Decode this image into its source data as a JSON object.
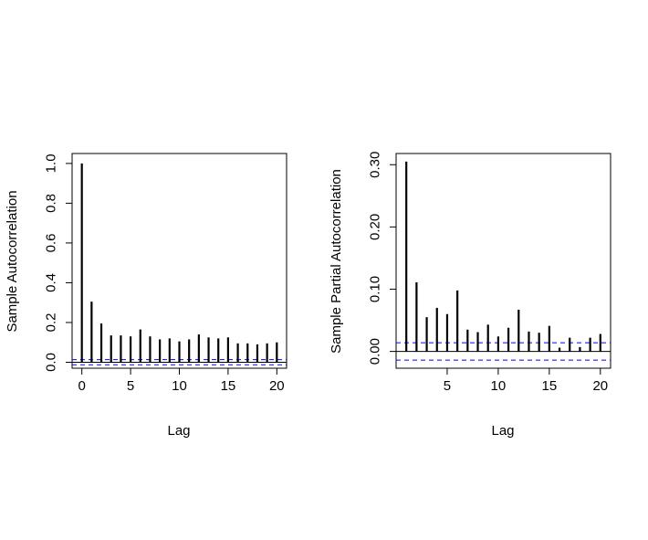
{
  "chart_data": [
    {
      "type": "bar",
      "subtype": "acf-stem",
      "xlabel": "Lag",
      "ylabel": "Sample Autocorrelation",
      "xlim": [
        -1,
        21
      ],
      "ylim": [
        -0.03,
        1.05
      ],
      "x_ticks": [
        0,
        5,
        10,
        15,
        20
      ],
      "y_ticks": [
        0.0,
        0.2,
        0.4,
        0.6,
        0.8,
        1.0
      ],
      "y_tick_labels": [
        "0.0",
        "0.2",
        "0.4",
        "0.6",
        "0.8",
        "1.0"
      ],
      "x": [
        0,
        1,
        2,
        3,
        4,
        5,
        6,
        7,
        8,
        9,
        10,
        11,
        12,
        13,
        14,
        15,
        16,
        17,
        18,
        19,
        20
      ],
      "values": [
        1.0,
        0.305,
        0.195,
        0.135,
        0.135,
        0.13,
        0.165,
        0.13,
        0.115,
        0.12,
        0.105,
        0.115,
        0.14,
        0.125,
        0.12,
        0.125,
        0.095,
        0.095,
        0.09,
        0.095,
        0.1
      ],
      "confidence_bound": 0.013,
      "bound_color": "#0000ff"
    },
    {
      "type": "bar",
      "subtype": "pacf-stem",
      "xlabel": "Lag",
      "ylabel": "Sample Partial Autocorrelation",
      "xlim": [
        0,
        21
      ],
      "ylim": [
        -0.027,
        0.318
      ],
      "x_ticks": [
        5,
        10,
        15,
        20
      ],
      "y_ticks": [
        0.0,
        0.1,
        0.2,
        0.3
      ],
      "y_tick_labels": [
        "0.00",
        "0.10",
        "0.20",
        "0.30"
      ],
      "x": [
        1,
        2,
        3,
        4,
        5,
        6,
        7,
        8,
        9,
        10,
        11,
        12,
        13,
        14,
        15,
        16,
        17,
        18,
        19,
        20
      ],
      "values": [
        0.305,
        0.111,
        0.055,
        0.07,
        0.06,
        0.098,
        0.035,
        0.031,
        0.043,
        0.024,
        0.038,
        0.067,
        0.032,
        0.03,
        0.041,
        0.006,
        0.022,
        0.007,
        0.022,
        0.028
      ],
      "confidence_bound": 0.014,
      "bound_color": "#0000ff"
    }
  ]
}
